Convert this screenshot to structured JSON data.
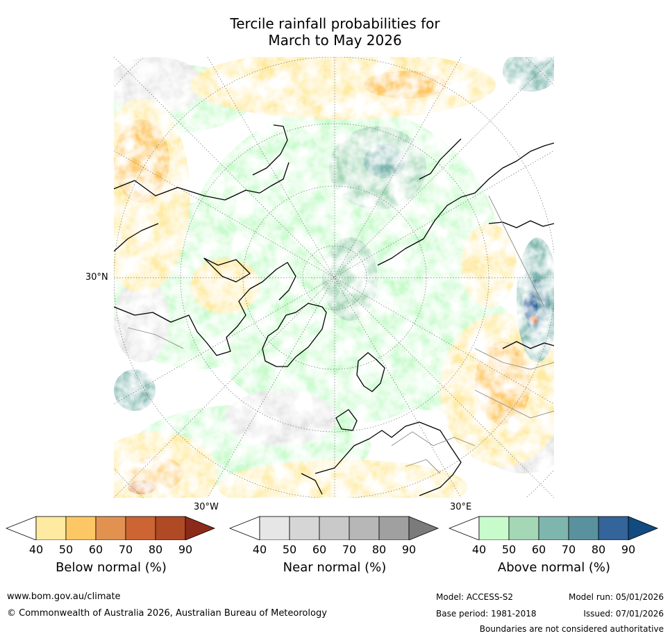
{
  "title": {
    "line1": "Tercile rainfall probabilities for",
    "line2": "March to May 2026"
  },
  "map": {
    "projection": "north-polar-stereographic",
    "lon_labels": [
      "30°W",
      "30°E"
    ],
    "lat_labels": [
      "30°N"
    ]
  },
  "colorbars": [
    {
      "name": "below",
      "label": "Below normal (%)",
      "ticks": [
        "40",
        "50",
        "60",
        "70",
        "80",
        "90"
      ],
      "colors": [
        "#ffffff",
        "#feeaa0",
        "#fdc765",
        "#e29250",
        "#cc6533",
        "#af4a25",
        "#8c2a1a"
      ]
    },
    {
      "name": "near",
      "label": "Near normal (%)",
      "ticks": [
        "40",
        "50",
        "60",
        "70",
        "80",
        "90"
      ],
      "colors": [
        "#ffffff",
        "#e6e6e6",
        "#d6d6d6",
        "#c9c9c9",
        "#b7b7b7",
        "#a0a0a0",
        "#7b7b7b"
      ]
    },
    {
      "name": "above",
      "label": "Above normal (%)",
      "ticks": [
        "40",
        "50",
        "60",
        "70",
        "80",
        "90"
      ],
      "colors": [
        "#ffffff",
        "#c8fbcc",
        "#a4d7b6",
        "#7eb6ae",
        "#5a919f",
        "#33649a",
        "#114b80"
      ]
    }
  ],
  "footer": {
    "website": "www.bom.gov.au/climate",
    "copyright": "© Commonwealth of Australia 2026, Australian Bureau of Meteorology",
    "model": "Model: ACCESS-S2",
    "model_run": "Model run: 05/01/2026",
    "base_period": "Base period: 1981-2018",
    "issued": "Issued: 07/01/2026",
    "disclaimer": "Boundaries are not considered authoritative"
  }
}
